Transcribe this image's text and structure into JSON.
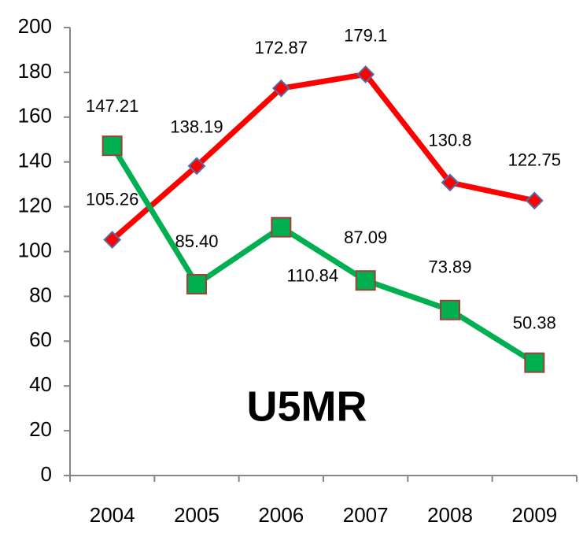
{
  "chart_data": {
    "type": "line",
    "title": "U5MR",
    "categories": [
      "2004",
      "2005",
      "2006",
      "2007",
      "2008",
      "2009"
    ],
    "series": [
      {
        "color": "#ff0000",
        "values": [
          105.26,
          138.19,
          172.87,
          179.1,
          130.8,
          122.75
        ]
      },
      {
        "color": "#00b050",
        "values": [
          147.21,
          85.4,
          110.84,
          87.09,
          73.89,
          50.38
        ],
        "value_labels": [
          "147.21",
          "85.40",
          "110.84",
          "87.09",
          "73.89",
          "50.38"
        ]
      }
    ],
    "ylim": [
      0,
      200
    ],
    "yticks": [
      0,
      20,
      40,
      60,
      80,
      100,
      120,
      140,
      160,
      180,
      200
    ],
    "grid": false
  }
}
